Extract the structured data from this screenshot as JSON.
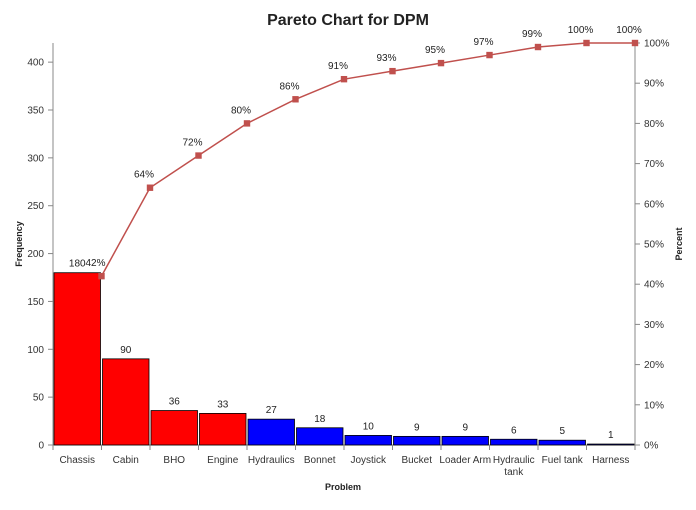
{
  "chart_data": {
    "type": "bar",
    "title": "Pareto Chart  for DPM",
    "xlabel": "Problem",
    "ylabel": "Frequency",
    "y2label": "Percent",
    "categories": [
      "Chassis",
      "Cabin",
      "BHO",
      "Engine",
      "Hydraulics",
      "Bonnet",
      "Joystick",
      "Bucket",
      "Loader Arm",
      "Hydraulic tank",
      "Fuel tank",
      "Harness"
    ],
    "category_display": [
      [
        "Chassis"
      ],
      [
        "Cabin"
      ],
      [
        "BHO"
      ],
      [
        "Engine"
      ],
      [
        "Hydraulics"
      ],
      [
        "Bonnet"
      ],
      [
        "Joystick"
      ],
      [
        "Bucket"
      ],
      [
        "Loader Arm"
      ],
      [
        "Hydraulic",
        "tank"
      ],
      [
        "Fuel tank"
      ],
      [
        "Harness"
      ]
    ],
    "series": [
      {
        "type": "bar",
        "values": [
          180,
          90,
          36,
          33,
          27,
          18,
          10,
          9,
          9,
          6,
          5,
          1
        ],
        "colors": [
          "#ff0000",
          "#ff0000",
          "#ff0000",
          "#ff0000",
          "#0000ff",
          "#0000ff",
          "#0000ff",
          "#0000ff",
          "#0000ff",
          "#0000ff",
          "#0000ff",
          "#0000ff"
        ]
      },
      {
        "type": "line",
        "axis": "right",
        "values": [
          42,
          64,
          72,
          80,
          86,
          91,
          93,
          95,
          97,
          99,
          100,
          100
        ],
        "labels": [
          "42%",
          "64%",
          "72%",
          "80%",
          "86%",
          "91%",
          "93%",
          "95%",
          "97%",
          "99%",
          "100%",
          "100%"
        ],
        "color": "#c0504d"
      }
    ],
    "ylim": [
      0,
      420
    ],
    "yticks": [
      0,
      50,
      100,
      150,
      200,
      250,
      300,
      350,
      400
    ],
    "y2lim": [
      0,
      100
    ],
    "y2ticks": [
      "0%",
      "10%",
      "20%",
      "30%",
      "40%",
      "50%",
      "60%",
      "70%",
      "80%",
      "90%",
      "100%"
    ],
    "grid": false,
    "legend": "none"
  }
}
